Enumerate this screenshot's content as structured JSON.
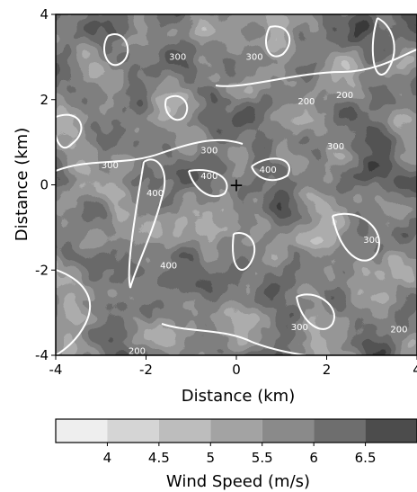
{
  "chart_data": {
    "type": "heatmap",
    "xlabel": "Distance (km)",
    "ylabel": "Distance (km)",
    "x_ticks": [
      "-4",
      "-2",
      "0",
      "2",
      "4"
    ],
    "y_ticks": [
      "4",
      "2",
      "0",
      "-2",
      "-4"
    ],
    "xlim": [
      -4,
      4
    ],
    "ylim": [
      -4,
      4
    ],
    "colorbar": {
      "label": "Wind Speed (m/s)",
      "levels": [
        3.5,
        4,
        4.5,
        5,
        5.5,
        6,
        6.5,
        7
      ],
      "tick_labels": [
        "4",
        "4.5",
        "5",
        "5.5",
        "6",
        "6.5"
      ],
      "colors": [
        "#eeeeee",
        "#d5d5d5",
        "#bdbdbd",
        "#a3a3a3",
        "#8a8a8a",
        "#6e6e6e",
        "#4c4c4c",
        "#262626"
      ]
    },
    "contour_labels": [
      {
        "text": "300",
        "x": -2.8,
        "y": 0.45
      },
      {
        "text": "300",
        "x": -1.3,
        "y": 3.0
      },
      {
        "text": "300",
        "x": 0.4,
        "y": 3.0
      },
      {
        "text": "300",
        "x": 2.2,
        "y": 0.9
      },
      {
        "text": "300",
        "x": 1.4,
        "y": -3.35
      },
      {
        "text": "300",
        "x": 3.0,
        "y": -1.3
      },
      {
        "text": "200",
        "x": 1.55,
        "y": 1.95
      },
      {
        "text": "200",
        "x": 2.4,
        "y": 2.1
      },
      {
        "text": "200",
        "x": -2.2,
        "y": -3.9
      },
      {
        "text": "200",
        "x": 3.6,
        "y": -3.4
      },
      {
        "text": "400",
        "x": -1.8,
        "y": -0.2
      },
      {
        "text": "400",
        "x": -0.6,
        "y": 0.2
      },
      {
        "text": "400",
        "x": 0.7,
        "y": 0.35
      },
      {
        "text": "400",
        "x": -1.5,
        "y": -1.9
      },
      {
        "text": "300",
        "x": -0.6,
        "y": 0.8
      }
    ],
    "marker": {
      "symbol": "+",
      "x": 0,
      "y": 0
    },
    "grid": false
  }
}
